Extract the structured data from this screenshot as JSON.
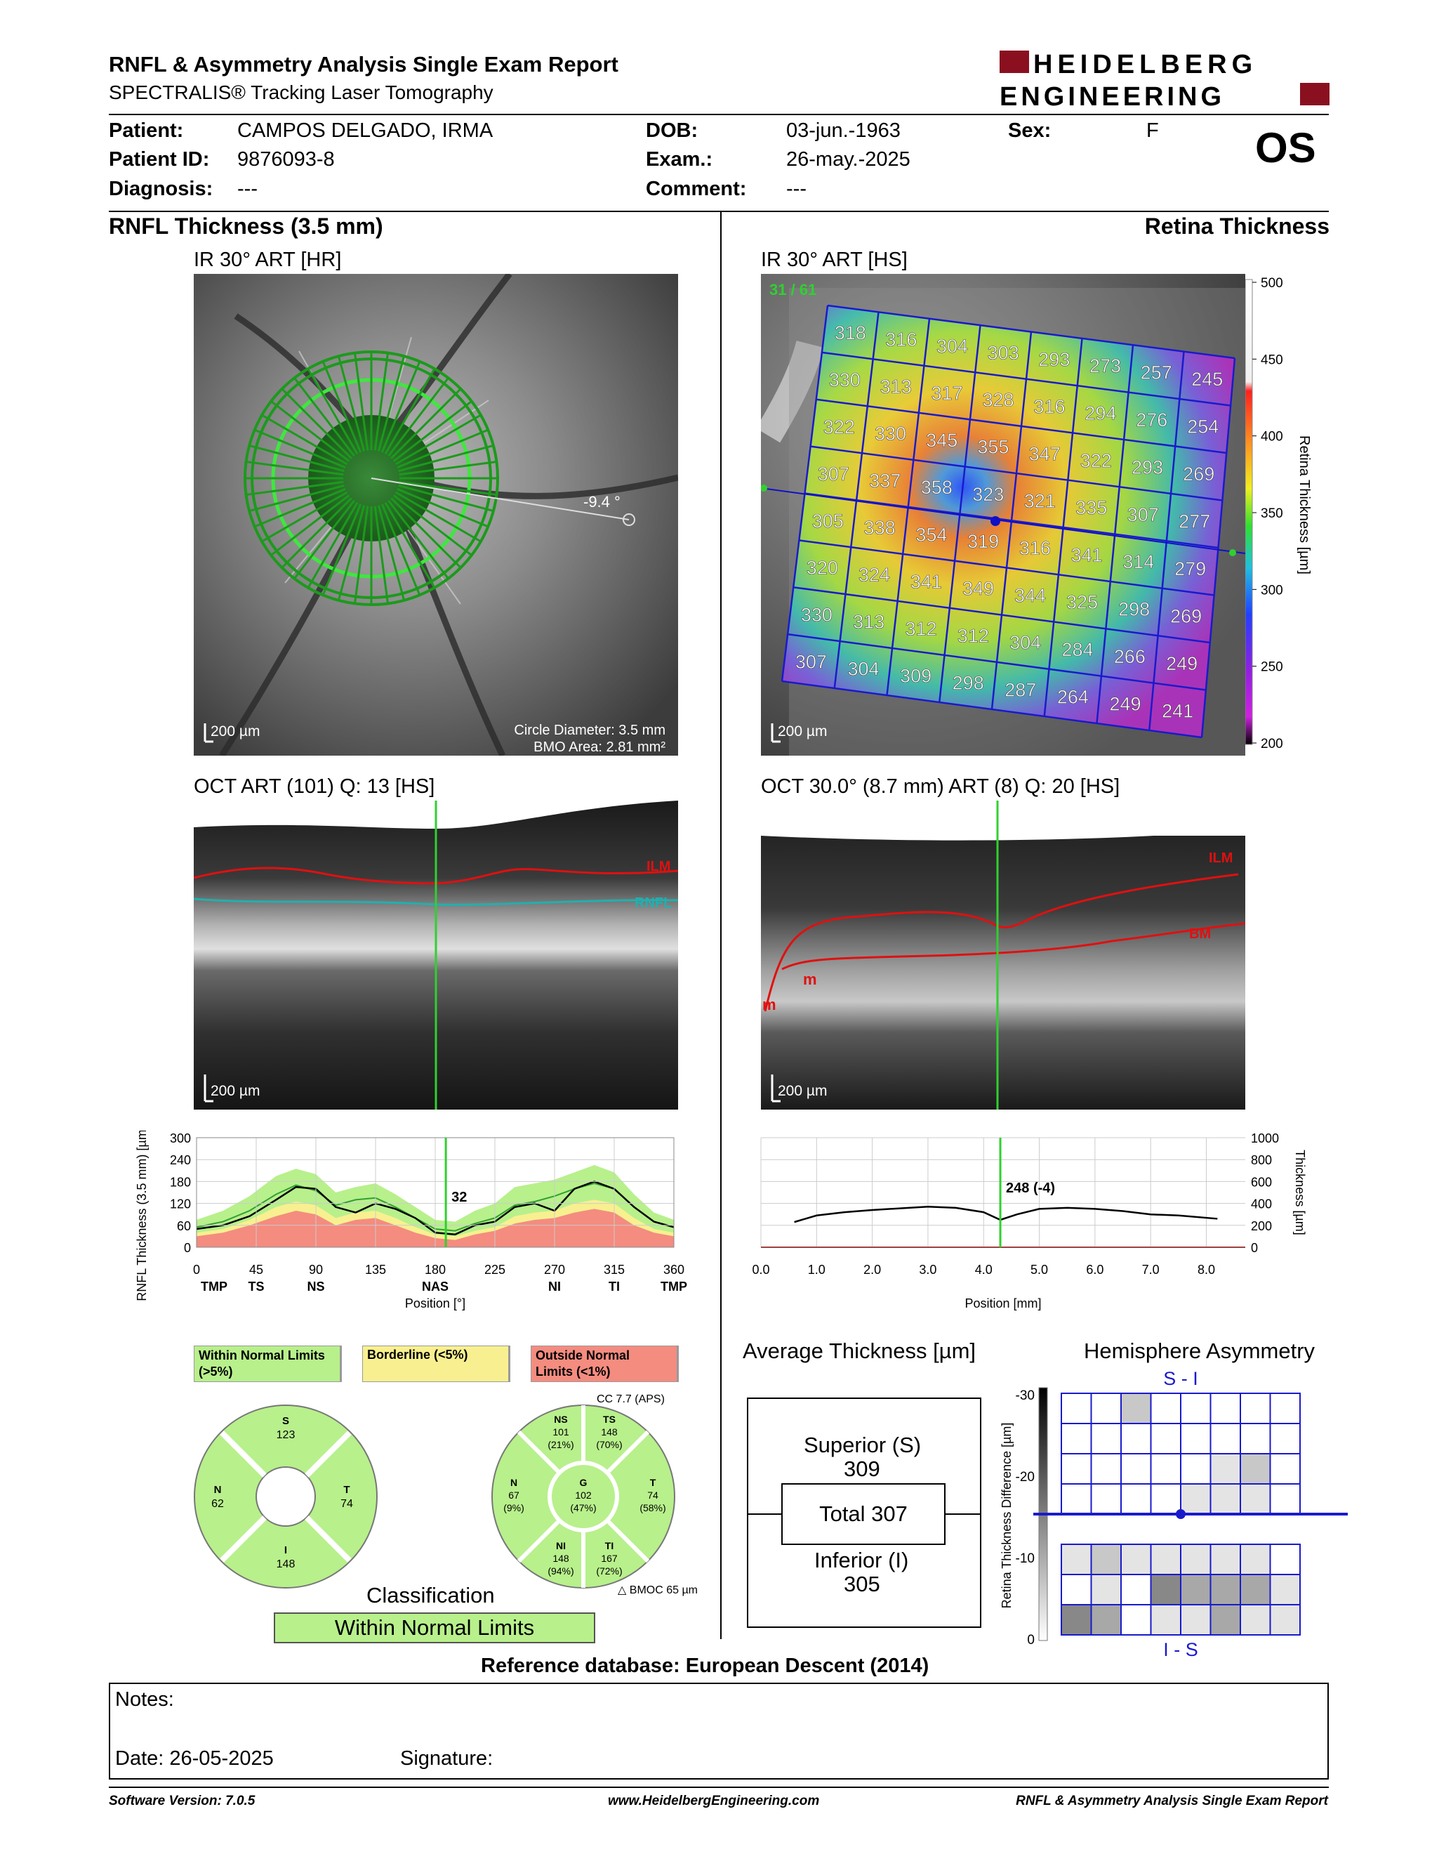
{
  "header": {
    "title": "RNFL & Asymmetry Analysis Single Exam Report",
    "subtitle": "SPECTRALIS® Tracking Laser Tomography",
    "logo_line1": "HEIDELBERG",
    "logo_line2": "ENGINEERING",
    "eye": "OS"
  },
  "patient": {
    "patient_label": "Patient:",
    "patient_value": "CAMPOS DELGADO, IRMA",
    "id_label": "Patient ID:",
    "id_value": "9876093-8",
    "diagnosis_label": "Diagnosis:",
    "diagnosis_value": "---",
    "dob_label": "DOB:",
    "dob_value": "03-jun.-1963",
    "exam_label": "Exam.:",
    "exam_value": "26-may.-2025",
    "comment_label": "Comment:",
    "comment_value": "---",
    "sex_label": "Sex:",
    "sex_value": "F"
  },
  "left": {
    "section_title": "RNFL Thickness (3.5 mm)",
    "ir_title": "IR 30° ART [HR]",
    "angle": "-9.4 °",
    "scale": "200 µm",
    "circle_diameter": "Circle Diameter: 3.5 mm",
    "bmo_area": "BMO Area: 2.81 mm²",
    "oct_title": "OCT ART (101) Q: 13 [HS]",
    "oct_scale": "200 µm",
    "ilm": "ILM",
    "rnfl": "RNFL"
  },
  "right": {
    "section_title": "Retina Thickness",
    "ir_title": "IR 30° ART [HS]",
    "counter": "31 / 61",
    "scale": "200 µm",
    "colorbar_ticks": [
      "500",
      "450",
      "400",
      "350",
      "300",
      "250",
      "200"
    ],
    "colorbar_label": "Retina Thickness [µm]",
    "grid_values": [
      [
        "318",
        "316",
        "304",
        "303",
        "293",
        "273",
        "257",
        "245"
      ],
      [
        "330",
        "313",
        "317",
        "328",
        "316",
        "294",
        "276",
        "254"
      ],
      [
        "322",
        "330",
        "345",
        "355",
        "347",
        "322",
        "293",
        "269"
      ],
      [
        "307",
        "337",
        "358",
        "323",
        "321",
        "335",
        "307",
        "277"
      ],
      [
        "305",
        "338",
        "354",
        "319",
        "316",
        "341",
        "314",
        "279"
      ],
      [
        "320",
        "324",
        "341",
        "349",
        "344",
        "325",
        "298",
        "269"
      ],
      [
        "330",
        "313",
        "312",
        "312",
        "304",
        "284",
        "266",
        "249"
      ],
      [
        "307",
        "304",
        "309",
        "298",
        "287",
        "264",
        "249",
        "241"
      ]
    ],
    "oct_title": "OCT 30.0° (8.7 mm) ART (8) Q: 20 [HS]",
    "oct_scale": "200 µm",
    "ilm": "ILM",
    "bm": "BM",
    "m1": "m",
    "m2": "m"
  },
  "rnfl_chart": {
    "type": "line",
    "ylabel": "RNFL Thickness (3.5 mm) [µm]",
    "xlabel": "Position [°]",
    "yticks": [
      "300",
      "240",
      "180",
      "120",
      "60",
      "0"
    ],
    "xticks": [
      "0",
      "45",
      "90",
      "135",
      "180",
      "225",
      "270",
      "315",
      "360"
    ],
    "sector_labels": [
      "TMP",
      "TS",
      "NS",
      "NAS",
      "NI",
      "TI",
      "TMP"
    ],
    "marker_label": "32",
    "xlim": [
      0,
      360
    ],
    "ylim": [
      0,
      300
    ],
    "x": [
      0,
      20,
      40,
      60,
      75,
      90,
      105,
      120,
      135,
      150,
      165,
      180,
      195,
      210,
      225,
      240,
      255,
      270,
      285,
      300,
      315,
      330,
      345,
      360
    ],
    "measured": [
      50,
      60,
      85,
      130,
      165,
      160,
      110,
      95,
      120,
      105,
      80,
      40,
      35,
      60,
      70,
      110,
      120,
      100,
      160,
      180,
      160,
      110,
      70,
      55
    ],
    "normal_upper": [
      75,
      100,
      140,
      195,
      215,
      200,
      150,
      165,
      175,
      145,
      110,
      75,
      70,
      100,
      120,
      165,
      175,
      185,
      205,
      225,
      205,
      145,
      95,
      75
    ],
    "normal_mean": [
      55,
      70,
      100,
      145,
      170,
      155,
      115,
      130,
      135,
      110,
      80,
      50,
      45,
      65,
      80,
      115,
      125,
      140,
      160,
      175,
      160,
      110,
      70,
      55
    ],
    "borderline": [
      40,
      50,
      75,
      110,
      125,
      115,
      80,
      95,
      100,
      80,
      55,
      35,
      30,
      45,
      55,
      85,
      95,
      100,
      120,
      130,
      120,
      80,
      50,
      40
    ],
    "outside": [
      30,
      40,
      60,
      85,
      100,
      90,
      60,
      75,
      80,
      60,
      40,
      25,
      20,
      35,
      45,
      65,
      75,
      80,
      95,
      105,
      95,
      60,
      40,
      30
    ]
  },
  "retina_chart": {
    "type": "line",
    "ylabel": "Thickness [µm]",
    "xlabel": "Position [mm]",
    "yticks": [
      "1000",
      "800",
      "600",
      "400",
      "200",
      "0"
    ],
    "xticks": [
      "0.0",
      "1.0",
      "2.0",
      "3.0",
      "4.0",
      "5.0",
      "6.0",
      "7.0",
      "8.0"
    ],
    "marker_label": "248 (-4)",
    "xlim": [
      0,
      8.7
    ],
    "ylim": [
      0,
      1000
    ],
    "x": [
      0.6,
      1.0,
      1.5,
      2.0,
      2.5,
      3.0,
      3.5,
      4.0,
      4.3,
      4.6,
      5.0,
      5.5,
      6.0,
      6.5,
      7.0,
      7.5,
      8.2
    ],
    "values": [
      230,
      290,
      320,
      340,
      355,
      370,
      360,
      320,
      250,
      300,
      350,
      360,
      350,
      330,
      300,
      290,
      260
    ]
  },
  "legend": {
    "within": "Within Normal Limits (>5%)",
    "borderline": "Borderline (<5%)",
    "outside": "Outside Normal Limits (<1%)",
    "cc": "CC 7.7 (APS)",
    "bmoc": "BMOC 65 µm",
    "colors": {
      "within": "#b8f08c",
      "borderline": "#f8f090",
      "outside": "#f48c80"
    }
  },
  "quadrants": {
    "S": "123",
    "N": "62",
    "T": "74",
    "I": "148"
  },
  "sectors": {
    "NS": {
      "label": "NS",
      "value": "101",
      "pct": "(21%)"
    },
    "TS": {
      "label": "TS",
      "value": "148",
      "pct": "(70%)"
    },
    "N": {
      "label": "N",
      "value": "67",
      "pct": "(9%)"
    },
    "G": {
      "label": "G",
      "value": "102",
      "pct": "(47%)"
    },
    "T": {
      "label": "T",
      "value": "74",
      "pct": "(58%)"
    },
    "NI": {
      "label": "NI",
      "value": "148",
      "pct": "(94%)"
    },
    "TI": {
      "label": "TI",
      "value": "167",
      "pct": "(72%)"
    }
  },
  "classification": {
    "title": "Classification",
    "value": "Within Normal Limits"
  },
  "average": {
    "title": "Average Thickness [µm]",
    "superior_label": "Superior (S)",
    "superior_value": "309",
    "total": "Total 307",
    "inferior_label": "Inferior (I)",
    "inferior_value": "305"
  },
  "asymmetry": {
    "title": "Hemisphere Asymmetry",
    "top_label": "S - I",
    "bottom_label": "I - S",
    "ylabel": "Retina Thickness Difference [µm]",
    "ticks": [
      "-30",
      "-20",
      "-10",
      "0"
    ],
    "cells": [
      [
        0,
        0,
        2,
        0,
        0,
        0,
        0,
        0
      ],
      [
        0,
        0,
        0,
        0,
        0,
        0,
        0,
        0
      ],
      [
        0,
        0,
        0,
        0,
        0,
        1,
        2,
        0
      ],
      [
        0,
        0,
        0,
        0,
        1,
        1,
        1,
        0
      ],
      [
        1,
        2,
        1,
        1,
        1,
        1,
        1,
        0
      ],
      [
        0,
        1,
        0,
        4,
        3,
        3,
        3,
        1
      ],
      [
        4,
        3,
        0,
        1,
        1,
        3,
        1,
        1
      ]
    ]
  },
  "reference_db": "Reference database: European Descent (2014)",
  "notes": {
    "notes_label": "Notes:",
    "date_label": "Date: 26-05-2025",
    "signature_label": "Signature:"
  },
  "footer": {
    "software": "Software Version: 7.0.5",
    "website": "www.HeidelbergEngineering.com",
    "report": "RNFL & Asymmetry Analysis Single Exam Report"
  }
}
